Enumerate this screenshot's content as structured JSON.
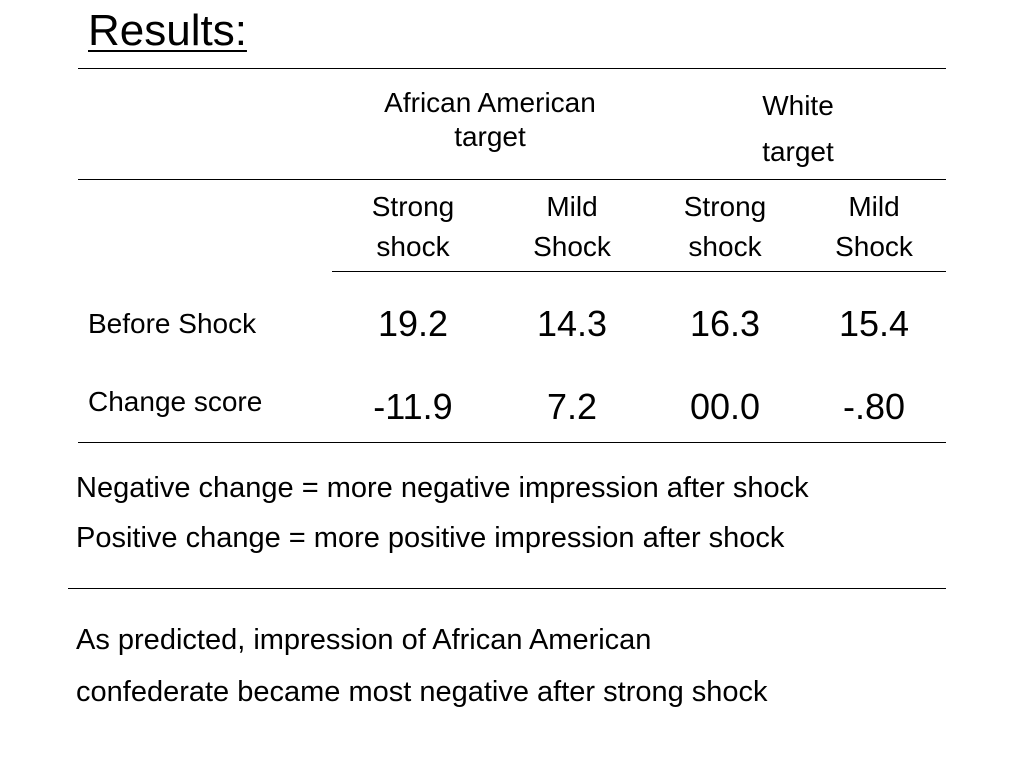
{
  "title": "Results:",
  "table": {
    "groups": [
      {
        "line1": "African American",
        "line2": "target"
      },
      {
        "line1": "White",
        "line2": "target"
      }
    ],
    "subheaders": [
      {
        "line1": "Strong",
        "line2": "shock"
      },
      {
        "line1": "Mild",
        "line2": "Shock"
      },
      {
        "line1": "Strong",
        "line2": "shock"
      },
      {
        "line1": "Mild",
        "line2": "Shock"
      }
    ],
    "rows": [
      {
        "label": "Before Shock",
        "values": [
          "19.2",
          "14.3",
          "16.3",
          "15.4"
        ]
      },
      {
        "label": "Change score",
        "values": [
          "-11.9",
          "7.2",
          "00.0",
          "-.80"
        ]
      }
    ]
  },
  "notes": {
    "negative": "Negative change  = more negative impression after shock",
    "positive": "Positive change  = more positive impression after shock"
  },
  "conclusion": {
    "line1": "As predicted, impression of African American",
    "line2": "confederate became most negative after strong shock"
  }
}
